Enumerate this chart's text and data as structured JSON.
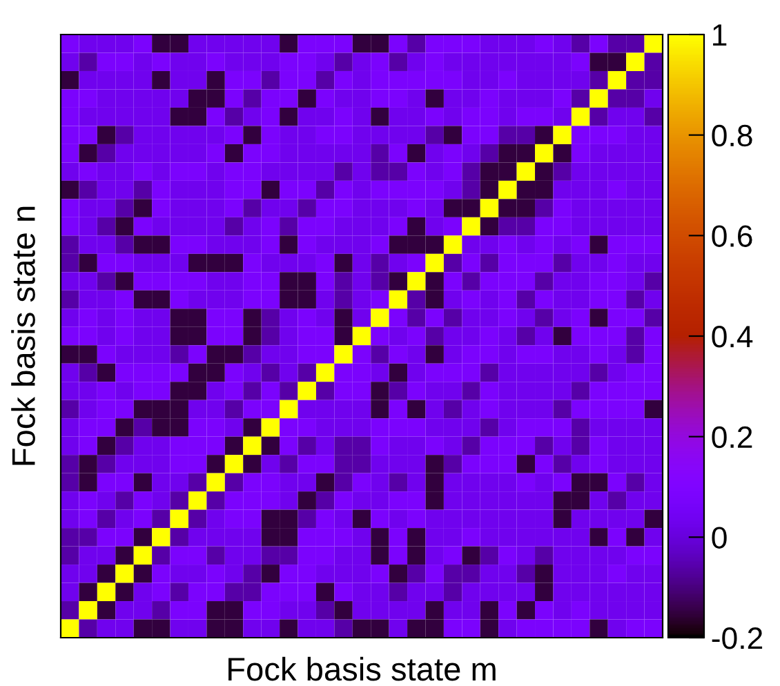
{
  "chart_data": {
    "type": "heatmap",
    "xlabel": "Fock basis state m",
    "ylabel": "Fock basis state n",
    "categories": [
      null,
      null,
      null,
      null,
      null,
      null,
      null,
      null,
      null,
      null,
      null,
      null,
      null,
      null,
      null,
      null,
      null,
      null,
      null,
      null,
      null,
      null,
      null,
      null,
      null,
      null,
      null,
      null,
      null,
      null,
      null,
      null,
      null
    ],
    "y_categories": [
      null,
      null,
      null,
      null,
      null,
      null,
      null,
      null,
      null,
      null,
      null,
      null,
      null,
      null,
      null,
      null,
      null,
      null,
      null,
      null,
      null,
      null,
      null,
      null,
      null,
      null,
      null,
      null,
      null,
      null,
      null,
      null,
      null
    ],
    "tick_labels": false,
    "clim": [
      -0.2,
      1
    ],
    "cticks": [
      -0.2,
      0,
      0.2,
      0.4,
      0.6,
      0.8,
      1
    ],
    "cells": [
      [
        0.08,
        0.03,
        0.03,
        0.03,
        0.08,
        -0.15,
        -0.15,
        0.03,
        0.03,
        0.03,
        0.03,
        0.03,
        -0.15,
        0.08,
        0.08,
        0.08,
        -0.15,
        -0.15,
        0.08,
        -0.06,
        0.08,
        0.08,
        0.08,
        0.03,
        0.03,
        0.03,
        0.08,
        0.03,
        -0.06,
        0.08,
        -0.06,
        -0.06,
        1
      ],
      [
        0.03,
        -0.06,
        0.08,
        0.08,
        0.03,
        0.08,
        0.03,
        0.03,
        0.08,
        0.03,
        0.03,
        0.03,
        0.08,
        0.08,
        0.03,
        -0.06,
        0.03,
        0.08,
        -0.06,
        0.03,
        0.08,
        0.03,
        0.03,
        0.03,
        0.03,
        0.03,
        0.03,
        0.03,
        0.08,
        -0.15,
        -0.15,
        1,
        -0.06
      ],
      [
        -0.15,
        0.03,
        0.03,
        0.03,
        0.03,
        -0.15,
        0.03,
        0.03,
        -0.15,
        0.08,
        0.08,
        -0.06,
        0.08,
        0.08,
        -0.06,
        0.08,
        0.03,
        0.08,
        0.08,
        0.08,
        0.08,
        0.08,
        0.03,
        0.03,
        0.08,
        0.03,
        0.03,
        0.03,
        0.03,
        -0.06,
        1,
        -0.06,
        -0.06
      ],
      [
        0.08,
        0.08,
        0.03,
        0.03,
        0.03,
        0.03,
        0.03,
        -0.15,
        -0.15,
        0.08,
        -0.06,
        0.08,
        0.08,
        -0.15,
        0.08,
        0.03,
        0.03,
        0.08,
        0.08,
        0.03,
        -0.15,
        0.03,
        0.03,
        0.08,
        0.03,
        0.03,
        0.03,
        0.08,
        -0.06,
        1,
        -0.06,
        -0.06,
        0.03
      ],
      [
        0.08,
        0.03,
        0.03,
        0.03,
        0.03,
        0.03,
        -0.15,
        -0.15,
        0.08,
        -0.06,
        0.03,
        0.08,
        -0.15,
        0.03,
        0.03,
        0.08,
        0.03,
        -0.15,
        0.03,
        0.03,
        0.08,
        0.03,
        0.08,
        0.08,
        0.03,
        0.08,
        0.08,
        0.03,
        1,
        -0.06,
        0.03,
        0.03,
        -0.06
      ],
      [
        0.08,
        0.08,
        -0.15,
        -0.06,
        0.03,
        0.03,
        0.03,
        0.03,
        0.03,
        0.08,
        -0.15,
        0.08,
        0.03,
        0.03,
        0.08,
        0.08,
        0.03,
        0.03,
        0.03,
        0.03,
        -0.06,
        -0.15,
        0.08,
        0.08,
        -0.06,
        -0.06,
        -0.15,
        1,
        0.08,
        0.08,
        0.08,
        0.03,
        0.03
      ],
      [
        0.08,
        -0.15,
        -0.06,
        0.03,
        0.03,
        0.03,
        0.03,
        0.03,
        0.08,
        -0.15,
        0.08,
        0.08,
        0.03,
        0.03,
        0.03,
        0.03,
        0.03,
        -0.06,
        0.08,
        -0.15,
        0.03,
        0.08,
        0.03,
        -0.06,
        -0.15,
        -0.15,
        1,
        -0.15,
        0.08,
        0.03,
        0.03,
        0.03,
        0.03
      ],
      [
        0.03,
        0.08,
        0.03,
        0.03,
        0.08,
        0.03,
        0.08,
        0.08,
        0.03,
        0.08,
        0.08,
        0.03,
        0.03,
        0.03,
        0.03,
        -0.06,
        0.03,
        -0.06,
        -0.06,
        0.08,
        0.03,
        0.08,
        -0.06,
        -0.15,
        -0.15,
        1,
        -0.15,
        -0.06,
        0.03,
        0.03,
        0.03,
        0.03,
        0.03
      ],
      [
        -0.15,
        -0.06,
        0.03,
        0.03,
        -0.06,
        0.08,
        0.03,
        0.03,
        0.03,
        0.08,
        0.08,
        -0.15,
        0.08,
        0.08,
        -0.06,
        0.08,
        0.03,
        0.08,
        0.08,
        0.08,
        0.08,
        0.03,
        -0.06,
        -0.15,
        1,
        -0.15,
        -0.15,
        0.03,
        0.03,
        0.03,
        0.08,
        0.03,
        0.03
      ],
      [
        0.08,
        0.03,
        0.03,
        -0.06,
        -0.15,
        0.08,
        0.03,
        0.03,
        0.03,
        0.08,
        -0.06,
        0.03,
        0.03,
        -0.06,
        0.08,
        0.08,
        0.03,
        0.03,
        0.03,
        0.08,
        0.03,
        -0.15,
        -0.15,
        1,
        -0.15,
        -0.15,
        -0.06,
        0.08,
        0.03,
        0.03,
        0.03,
        0.03,
        0.03
      ],
      [
        0.08,
        0.03,
        -0.06,
        -0.15,
        0.08,
        0.03,
        0.03,
        0.03,
        0.03,
        -0.06,
        0.03,
        0.08,
        -0.06,
        0.08,
        0.08,
        0.03,
        0.03,
        0.03,
        0.08,
        -0.15,
        0.03,
        0.08,
        1,
        -0.15,
        -0.06,
        -0.06,
        0.08,
        0.08,
        0.03,
        0.03,
        0.03,
        0.03,
        0.03
      ],
      [
        -0.06,
        0.03,
        0.03,
        -0.06,
        -0.15,
        -0.15,
        0.08,
        0.08,
        0.03,
        0.03,
        0.03,
        0.08,
        -0.15,
        0.08,
        0.03,
        0.03,
        0.03,
        0.08,
        -0.15,
        -0.15,
        -0.15,
        1,
        0.03,
        0.03,
        0.08,
        0.03,
        0.08,
        0.03,
        0.08,
        -0.15,
        0.08,
        0.08,
        0.08
      ],
      [
        -0.06,
        -0.15,
        0.08,
        0.08,
        0.03,
        0.03,
        0.03,
        -0.15,
        -0.15,
        -0.15,
        0.08,
        0.03,
        0.03,
        0.03,
        0.08,
        -0.15,
        0.03,
        -0.06,
        0.03,
        0.08,
        1,
        -0.06,
        0.08,
        -0.06,
        0.08,
        0.08,
        0.08,
        -0.06,
        0.03,
        0.03,
        0.08,
        0.03,
        0.03
      ],
      [
        0.03,
        0.03,
        -0.06,
        -0.15,
        0.08,
        0.08,
        0.08,
        0.08,
        0.03,
        0.03,
        0.08,
        0.08,
        -0.15,
        -0.15,
        0.08,
        -0.06,
        0.03,
        -0.06,
        -0.15,
        1,
        -0.15,
        0.08,
        -0.06,
        0.08,
        0.08,
        0.08,
        -0.06,
        0.03,
        0.03,
        0.08,
        0.08,
        0.03,
        -0.06
      ],
      [
        -0.06,
        0.03,
        0.03,
        0.08,
        -0.15,
        -0.15,
        0.08,
        0.03,
        0.03,
        0.03,
        0.08,
        0.08,
        -0.15,
        -0.15,
        0.03,
        -0.06,
        0.03,
        0.08,
        1,
        -0.06,
        -0.15,
        0.03,
        0.08,
        0.03,
        0.08,
        -0.06,
        0.08,
        0.03,
        0.03,
        0.08,
        0.08,
        -0.06,
        0.03
      ],
      [
        0.03,
        0.08,
        0.03,
        0.08,
        0.03,
        0.03,
        -0.15,
        -0.15,
        0.08,
        0.08,
        -0.15,
        -0.06,
        0.03,
        0.08,
        0.03,
        -0.15,
        0.03,
        1,
        0.08,
        -0.06,
        0.08,
        -0.06,
        0.03,
        0.03,
        0.08,
        0.03,
        -0.06,
        0.03,
        0.08,
        -0.15,
        0.08,
        0.08,
        -0.06
      ],
      [
        0.08,
        0.08,
        0.03,
        0.08,
        0.03,
        0.03,
        -0.15,
        -0.15,
        0.08,
        0.08,
        -0.15,
        -0.06,
        0.03,
        0.08,
        0.08,
        -0.15,
        1,
        0.08,
        0.03,
        0.08,
        -0.06,
        0.03,
        0.03,
        0.08,
        0.03,
        -0.06,
        0.03,
        -0.15,
        0.08,
        0.08,
        0.08,
        -0.06,
        0.08
      ],
      [
        -0.15,
        -0.15,
        0.08,
        0.03,
        0.03,
        0.03,
        -0.06,
        0.08,
        -0.15,
        -0.15,
        -0.06,
        0.03,
        0.03,
        0.08,
        0.08,
        1,
        0.08,
        -0.06,
        0.08,
        0.03,
        -0.15,
        0.03,
        0.08,
        0.08,
        0.03,
        0.08,
        0.08,
        0.03,
        0.03,
        0.08,
        0.03,
        -0.06,
        0.08
      ],
      [
        0.03,
        -0.06,
        -0.15,
        0.08,
        0.08,
        0.08,
        0.08,
        -0.15,
        -0.15,
        0.08,
        0.03,
        -0.06,
        0.03,
        -0.06,
        1,
        0.08,
        0.08,
        0.03,
        -0.15,
        0.03,
        0.08,
        0.08,
        0.08,
        -0.06,
        0.03,
        0.03,
        0.03,
        0.03,
        0.03,
        -0.06,
        0.03,
        0.08,
        0.08
      ],
      [
        0.03,
        0.03,
        0.08,
        0.03,
        0.08,
        0.08,
        -0.15,
        -0.15,
        0.03,
        0.08,
        -0.06,
        0.08,
        -0.06,
        1,
        -0.06,
        0.08,
        0.08,
        -0.15,
        -0.06,
        0.08,
        0.03,
        0.03,
        -0.06,
        0.08,
        0.03,
        0.03,
        0.03,
        0.03,
        -0.06,
        0.08,
        0.08,
        0.08,
        0.08
      ],
      [
        -0.06,
        0.03,
        0.08,
        0.08,
        -0.15,
        -0.15,
        -0.15,
        0.03,
        0.03,
        -0.06,
        0.08,
        0.08,
        1,
        0.03,
        0.03,
        0.03,
        0.03,
        -0.15,
        0.08,
        -0.15,
        0.03,
        -0.06,
        0.03,
        0.08,
        0.03,
        0.03,
        0.03,
        -0.06,
        0.08,
        0.08,
        0.08,
        0.08,
        -0.15
      ],
      [
        0.03,
        0.08,
        0.08,
        -0.15,
        -0.06,
        -0.15,
        -0.15,
        0.08,
        0.08,
        0.03,
        -0.15,
        1,
        0.08,
        0.08,
        0.03,
        0.03,
        0.03,
        0.08,
        0.08,
        0.08,
        0.03,
        0.03,
        0.03,
        -0.06,
        0.03,
        0.08,
        0.08,
        0.08,
        -0.06,
        0.03,
        0.03,
        0.03,
        0.03
      ],
      [
        0.03,
        0.08,
        -0.15,
        -0.06,
        0.03,
        0.03,
        0.08,
        0.08,
        0.08,
        -0.15,
        1,
        -0.15,
        0.08,
        -0.06,
        0.03,
        -0.06,
        -0.06,
        0.08,
        0.03,
        0.03,
        0.08,
        0.03,
        -0.06,
        0.08,
        0.08,
        0.08,
        -0.06,
        0.03,
        -0.06,
        0.08,
        0.03,
        0.03,
        0.03
      ],
      [
        -0.06,
        -0.15,
        -0.06,
        0.03,
        0.03,
        0.03,
        0.08,
        0.08,
        -0.15,
        1,
        -0.15,
        0.03,
        -0.06,
        0.08,
        0.08,
        -0.06,
        -0.06,
        0.03,
        0.03,
        0.03,
        -0.15,
        -0.06,
        0.08,
        0.08,
        0.08,
        -0.15,
        0.08,
        -0.06,
        0.03,
        0.08,
        0.03,
        0.03,
        0.03
      ],
      [
        -0.06,
        -0.15,
        0.08,
        0.08,
        -0.15,
        0.03,
        0.03,
        -0.06,
        1,
        -0.06,
        0.08,
        0.08,
        0.03,
        0.03,
        -0.15,
        -0.06,
        0.08,
        0.03,
        -0.06,
        0.03,
        -0.15,
        0.03,
        0.03,
        0.03,
        0.03,
        0.08,
        0.03,
        0.08,
        -0.15,
        -0.15,
        0.08,
        -0.06,
        0.03
      ],
      [
        0.03,
        0.08,
        0.03,
        -0.06,
        0.08,
        0.03,
        -0.06,
        1,
        -0.06,
        0.08,
        0.08,
        0.08,
        0.03,
        -0.15,
        -0.06,
        0.08,
        0.03,
        0.03,
        0.08,
        0.08,
        -0.15,
        0.03,
        0.03,
        0.03,
        0.03,
        0.03,
        0.03,
        -0.15,
        -0.15,
        0.03,
        -0.06,
        0.03,
        0.03
      ],
      [
        0.03,
        0.08,
        -0.06,
        0.03,
        0.08,
        -0.06,
        1,
        -0.06,
        0.03,
        0.08,
        0.08,
        -0.15,
        -0.15,
        -0.06,
        0.08,
        0.03,
        -0.15,
        0.08,
        0.03,
        0.08,
        0.03,
        0.03,
        0.03,
        0.03,
        0.03,
        0.03,
        0.03,
        -0.15,
        0.03,
        0.03,
        0.03,
        0.03,
        -0.15
      ],
      [
        -0.06,
        -0.06,
        0.08,
        0.08,
        -0.15,
        1,
        -0.06,
        0.03,
        0.03,
        0.03,
        0.03,
        -0.15,
        -0.15,
        0.08,
        0.08,
        0.08,
        0.03,
        -0.15,
        0.08,
        -0.15,
        0.03,
        0.03,
        0.08,
        0.03,
        0.03,
        0.03,
        0.03,
        0.03,
        0.03,
        -0.15,
        0.08,
        -0.15,
        0.03
      ],
      [
        -0.06,
        0.03,
        0.03,
        -0.15,
        1,
        -0.06,
        0.08,
        0.08,
        -0.06,
        0.03,
        0.03,
        -0.06,
        -0.06,
        0.08,
        0.08,
        0.03,
        0.03,
        -0.15,
        0.08,
        -0.15,
        0.03,
        0.08,
        -0.15,
        -0.06,
        0.08,
        0.03,
        -0.06,
        0.03,
        0.03,
        0.03,
        0.03,
        0.08,
        0.08
      ],
      [
        0.03,
        0.03,
        -0.15,
        1,
        -0.15,
        0.08,
        0.03,
        0.03,
        0.08,
        0.03,
        -0.06,
        -0.15,
        0.08,
        0.08,
        0.03,
        0.03,
        0.03,
        0.08,
        -0.15,
        -0.06,
        0.08,
        -0.06,
        -0.06,
        0.03,
        0.03,
        -0.06,
        -0.15,
        0.03,
        0.03,
        0.03,
        0.08,
        0.03,
        0.03
      ],
      [
        0.03,
        -0.15,
        1,
        -0.15,
        0.03,
        0.08,
        -0.06,
        0.08,
        0.08,
        -0.06,
        -0.06,
        0.08,
        0.08,
        0.08,
        -0.15,
        0.08,
        0.03,
        0.03,
        -0.06,
        0.03,
        0.03,
        -0.06,
        0.03,
        0.03,
        0.03,
        0.03,
        -0.15,
        0.03,
        0.03,
        0.03,
        0.03,
        0.03,
        0.03
      ],
      [
        -0.06,
        1,
        -0.15,
        0.03,
        0.03,
        -0.06,
        0.08,
        0.08,
        -0.15,
        -0.15,
        0.08,
        0.08,
        0.03,
        0.03,
        -0.06,
        -0.15,
        0.03,
        0.03,
        0.03,
        0.03,
        -0.15,
        0.03,
        0.03,
        -0.15,
        0.08,
        -0.15,
        0.08,
        0.03,
        0.08,
        0.03,
        0.03,
        0.03,
        0.03
      ],
      [
        1,
        -0.06,
        0.03,
        0.03,
        -0.15,
        -0.15,
        0.03,
        0.03,
        -0.15,
        -0.15,
        0.03,
        0.03,
        -0.15,
        0.03,
        0.03,
        -0.06,
        -0.15,
        -0.15,
        0.03,
        -0.15,
        -0.15,
        0.08,
        0.08,
        -0.15,
        0.03,
        0.08,
        0.08,
        0.08,
        0.08,
        -0.15,
        0.03,
        0.08,
        0.08
      ]
    ]
  }
}
